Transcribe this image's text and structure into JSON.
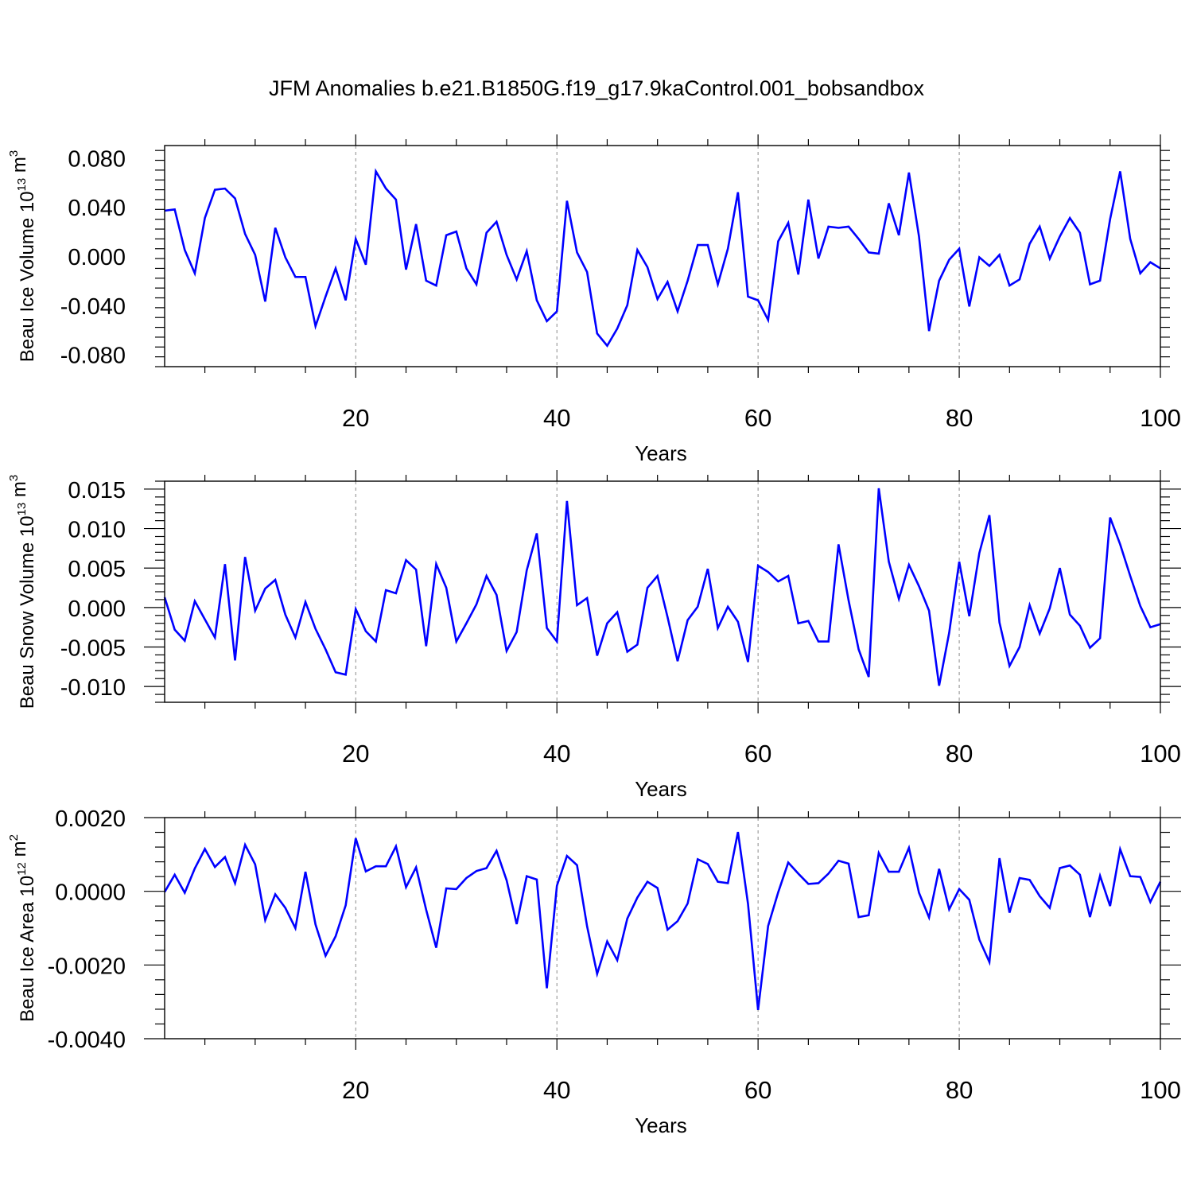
{
  "title": "JFM Anomalies b.e21.B1850G.f19_g17.9kaControl.001_bobsandbox",
  "chart_data": [
    {
      "type": "line",
      "xlabel": "Years",
      "ylabel_base": "Beau Ice Volume 10",
      "ylabel_exp": "13",
      "ylabel_unit": " m",
      "ylabel_unit_exp": "3",
      "xlim": [
        1,
        100
      ],
      "ylim": [
        -0.09,
        0.09
      ],
      "x_ticks": [
        20,
        40,
        60,
        80,
        100
      ],
      "y_ticks": [
        -0.08,
        -0.04,
        0.0,
        0.04,
        0.08
      ],
      "y_tick_labels": [
        "-0.080",
        "-0.040",
        "0.000",
        "0.040",
        "0.080"
      ],
      "color": "#0000ff",
      "values": [
        0.037,
        0.038,
        0.005,
        -0.014,
        0.031,
        0.054,
        0.055,
        0.047,
        0.018,
        0.001,
        -0.037,
        0.023,
        -0.001,
        -0.017,
        -0.017,
        -0.057,
        -0.033,
        -0.01,
        -0.036,
        0.014,
        -0.007,
        0.069,
        0.055,
        0.046,
        -0.011,
        0.026,
        -0.02,
        -0.024,
        0.017,
        0.02,
        -0.01,
        -0.023,
        0.019,
        0.028,
        0.001,
        -0.019,
        0.004,
        -0.036,
        -0.053,
        -0.045,
        0.045,
        0.003,
        -0.013,
        -0.063,
        -0.073,
        -0.059,
        -0.04,
        0.005,
        -0.009,
        -0.035,
        -0.021,
        -0.045,
        -0.02,
        0.009,
        0.009,
        -0.023,
        0.006,
        0.052,
        -0.033,
        -0.036,
        -0.052,
        0.012,
        0.027,
        -0.015,
        0.046,
        -0.002,
        0.024,
        0.023,
        0.024,
        0.014,
        0.003,
        0.002,
        0.043,
        0.017,
        0.068,
        0.016,
        -0.061,
        -0.02,
        -0.003,
        0.006,
        -0.041,
        -0.001,
        -0.008,
        0.001,
        -0.024,
        -0.019,
        0.01,
        0.024,
        -0.002,
        0.016,
        0.031,
        0.019,
        -0.023,
        -0.02,
        0.03,
        0.069,
        0.014,
        -0.014,
        -0.005,
        -0.01
      ]
    },
    {
      "type": "line",
      "xlabel": "Years",
      "ylabel_base": "Beau Snow Volume 10",
      "ylabel_exp": "13",
      "ylabel_unit": " m",
      "ylabel_unit_exp": "3",
      "xlim": [
        1,
        100
      ],
      "ylim": [
        -0.012,
        0.016
      ],
      "x_ticks": [
        20,
        40,
        60,
        80,
        100
      ],
      "y_ticks": [
        -0.01,
        -0.005,
        0.0,
        0.005,
        0.01,
        0.015
      ],
      "y_tick_labels": [
        "-0.010",
        "-0.005",
        "0.000",
        "0.005",
        "0.010",
        "0.015"
      ],
      "color": "#0000ff",
      "values": [
        0.0013,
        -0.0028,
        -0.0042,
        0.0008,
        -0.0015,
        -0.0038,
        0.0055,
        -0.0067,
        0.0064,
        -0.0004,
        0.0024,
        0.0035,
        -0.0009,
        -0.0038,
        0.0007,
        -0.0027,
        -0.0053,
        -0.0082,
        -0.0085,
        -0.0002,
        -0.003,
        -0.0043,
        0.0022,
        0.0018,
        0.006,
        0.0048,
        -0.0049,
        0.0055,
        0.0025,
        -0.0043,
        -0.002,
        0.0004,
        0.004,
        0.0016,
        -0.0055,
        -0.0031,
        0.0047,
        0.0094,
        -0.0026,
        -0.0043,
        0.0135,
        0.0003,
        0.0012,
        -0.0061,
        -0.002,
        -0.0006,
        -0.0056,
        -0.0047,
        0.0025,
        0.004,
        -0.0012,
        -0.0068,
        -0.0016,
        0.0001,
        0.0049,
        -0.0026,
        0.0001,
        -0.0018,
        -0.0069,
        0.0053,
        0.0045,
        0.0033,
        0.004,
        -0.002,
        -0.0017,
        -0.0043,
        -0.0043,
        0.008,
        0.0009,
        -0.0053,
        -0.0088,
        0.0151,
        0.0058,
        0.0011,
        0.0054,
        0.0027,
        -0.0004,
        -0.0099,
        -0.0032,
        0.0058,
        -0.0011,
        0.0069,
        0.0117,
        -0.0019,
        -0.0074,
        -0.005,
        0.0003,
        -0.0033,
        -0.0001,
        0.005,
        -0.0009,
        -0.0023,
        -0.0051,
        -0.0039,
        0.0114,
        0.008,
        0.004,
        0.0002,
        -0.0025,
        -0.0021
      ]
    },
    {
      "type": "line",
      "xlabel": "Years",
      "ylabel_base": "Beau Ice Area 10",
      "ylabel_exp": "12",
      "ylabel_unit": " m",
      "ylabel_unit_exp": "2",
      "xlim": [
        1,
        100
      ],
      "ylim": [
        -0.004,
        0.002
      ],
      "x_ticks": [
        20,
        40,
        60,
        80,
        100
      ],
      "y_ticks": [
        -0.004,
        -0.002,
        0.0,
        0.002
      ],
      "y_tick_labels": [
        "-0.0040",
        "-0.0020",
        "0.0000",
        "0.0020"
      ],
      "color": "#0000ff",
      "values": [
        -2e-05,
        0.00045,
        -4e-05,
        0.00062,
        0.00115,
        0.00066,
        0.00093,
        0.00022,
        0.00126,
        0.00073,
        -0.00078,
        -8e-05,
        -0.00045,
        -0.001,
        0.00053,
        -0.0009,
        -0.00175,
        -0.00122,
        -0.00038,
        0.00144,
        0.00054,
        0.00068,
        0.00068,
        0.00122,
        0.00011,
        0.00065,
        -0.0005,
        -0.00153,
        8e-05,
        6e-05,
        0.00036,
        0.00055,
        0.00063,
        0.0011,
        0.0003,
        -0.00089,
        0.00041,
        0.00032,
        -0.00263,
        0.00015,
        0.00096,
        0.00071,
        -0.00095,
        -0.00224,
        -0.00136,
        -0.00187,
        -0.00074,
        -0.00017,
        0.00026,
        9e-05,
        -0.00104,
        -0.00081,
        -0.00033,
        0.00087,
        0.00074,
        0.00026,
        0.00022,
        0.00161,
        -0.00034,
        -0.00322,
        -0.00094,
        -3e-05,
        0.00078,
        0.00048,
        0.0002,
        0.00022,
        0.00048,
        0.00083,
        0.00075,
        -0.0007,
        -0.00065,
        0.00104,
        0.00053,
        0.00053,
        0.00118,
        -4e-05,
        -0.00071,
        0.00061,
        -0.00049,
        6e-05,
        -0.00023,
        -0.00131,
        -0.00192,
        0.0009,
        -0.00058,
        0.00036,
        0.00031,
        -0.00013,
        -0.00045,
        0.00063,
        0.0007,
        0.00045,
        -0.0007,
        0.00042,
        -0.0004,
        0.00114,
        0.00041,
        0.00039,
        -0.00029,
        0.00026
      ]
    }
  ]
}
